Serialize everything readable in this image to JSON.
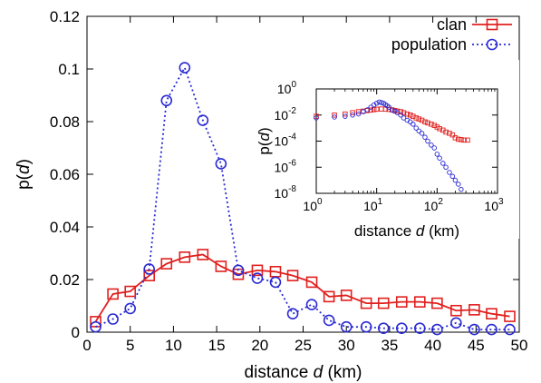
{
  "chart_data": [
    {
      "type": "line",
      "xlabel": "distance d (km)",
      "ylabel": "p(d)",
      "xlim": [
        0,
        50
      ],
      "ylim": [
        0,
        0.12
      ],
      "xticks": [
        "0",
        "5",
        "10",
        "15",
        "20",
        "25",
        "30",
        "35",
        "40",
        "45",
        "50"
      ],
      "yticks": [
        "0",
        "0.02",
        "0.04",
        "0.06",
        "0.08",
        "0.1",
        "0.12"
      ],
      "legend_position": "top-right",
      "series": [
        {
          "name": "clan",
          "color": "#e0201e",
          "marker": "square",
          "line": "solid",
          "x": [
            1,
            3,
            5,
            7.2,
            9.2,
            11.3,
            13.4,
            15.5,
            17.5,
            19.7,
            21.8,
            23.8,
            26,
            28,
            30,
            32.3,
            34.3,
            36.4,
            38.5,
            40.5,
            42.7,
            44.8,
            46.8,
            48.9
          ],
          "y": [
            0.004,
            0.0145,
            0.0155,
            0.0215,
            0.026,
            0.0285,
            0.0295,
            0.025,
            0.022,
            0.0235,
            0.023,
            0.0215,
            0.019,
            0.0135,
            0.014,
            0.011,
            0.011,
            0.0115,
            0.0115,
            0.011,
            0.0082,
            0.0085,
            0.007,
            0.006
          ]
        },
        {
          "name": "population",
          "color": "#2a2ad4",
          "marker": "circle",
          "line": "dotted",
          "x": [
            1,
            3,
            5,
            7.2,
            9.2,
            11.3,
            13.4,
            15.5,
            17.5,
            19.7,
            21.8,
            23.8,
            26,
            28,
            30,
            32.3,
            34.3,
            36.4,
            38.5,
            40.5,
            42.7,
            44.8,
            46.8,
            48.9
          ],
          "y": [
            0.002,
            0.005,
            0.009,
            0.024,
            0.088,
            0.1005,
            0.0805,
            0.064,
            0.0235,
            0.0205,
            0.019,
            0.007,
            0.0105,
            0.0045,
            0.002,
            0.002,
            0.0015,
            0.0015,
            0.0015,
            0.001,
            0.0035,
            0.001,
            0.001,
            0.001
          ]
        }
      ]
    },
    {
      "type": "scatter",
      "role": "inset",
      "xlabel": "distance d (km)",
      "ylabel": "p(d)",
      "xscale": "log",
      "yscale": "log",
      "xlim": [
        1,
        1000
      ],
      "ylim": [
        1e-08,
        1
      ],
      "xticks": [
        {
          "base": "10",
          "exp": "0"
        },
        {
          "base": "10",
          "exp": "1"
        },
        {
          "base": "10",
          "exp": "2"
        },
        {
          "base": "10",
          "exp": "3"
        }
      ],
      "yticks": [
        {
          "base": "10",
          "exp": "0"
        },
        {
          "base": "10",
          "exp": "-2"
        },
        {
          "base": "10",
          "exp": "-4"
        },
        {
          "base": "10",
          "exp": "-6"
        },
        {
          "base": "10",
          "exp": "-8"
        }
      ],
      "series": [
        {
          "name": "clan",
          "color": "#e0201e",
          "marker": "square",
          "x": [
            1,
            2,
            3,
            4,
            5,
            6,
            7,
            8,
            9,
            10,
            12,
            14,
            16,
            18,
            20,
            22,
            25,
            28,
            32,
            36,
            40,
            45,
            50,
            56,
            63,
            70,
            80,
            90,
            100,
            110,
            125,
            140,
            160,
            180,
            200,
            225,
            250,
            280,
            320
          ],
          "y": [
            0.008,
            0.01,
            0.012,
            0.015,
            0.018,
            0.02,
            0.022,
            0.024,
            0.026,
            0.028,
            0.029,
            0.028,
            0.027,
            0.025,
            0.022,
            0.02,
            0.018,
            0.015,
            0.012,
            0.01,
            0.008,
            0.006,
            0.005,
            0.004,
            0.003,
            0.0025,
            0.002,
            0.0016,
            0.0012,
            0.0009,
            0.0007,
            0.0005,
            0.0004,
            0.0003,
            0.00018,
            0.00014,
            0.00013,
            0.00012,
            0.00012
          ]
        },
        {
          "name": "population",
          "color": "#2a2ad4",
          "marker": "circle",
          "x": [
            1,
            2,
            3,
            4,
            5,
            6,
            7,
            8,
            9,
            10,
            11,
            12,
            13,
            14,
            15,
            16,
            18,
            20,
            22,
            25,
            28,
            32,
            36,
            40,
            45,
            50,
            56,
            63,
            70,
            80,
            90,
            100,
            110,
            125,
            140,
            160,
            180,
            200,
            225,
            250
          ],
          "y": [
            0.006,
            0.007,
            0.008,
            0.01,
            0.012,
            0.018,
            0.025,
            0.04,
            0.06,
            0.08,
            0.1,
            0.09,
            0.08,
            0.064,
            0.05,
            0.04,
            0.024,
            0.02,
            0.015,
            0.01,
            0.006,
            0.004,
            0.003,
            0.002,
            0.001,
            0.0006,
            0.0004,
            0.0002,
            0.0001,
            5e-05,
            3e-05,
            1e-05,
            5e-06,
            2e-06,
            1e-06,
            4e-07,
            2e-07,
            1e-07,
            5e-08,
            2e-08
          ]
        }
      ]
    }
  ]
}
